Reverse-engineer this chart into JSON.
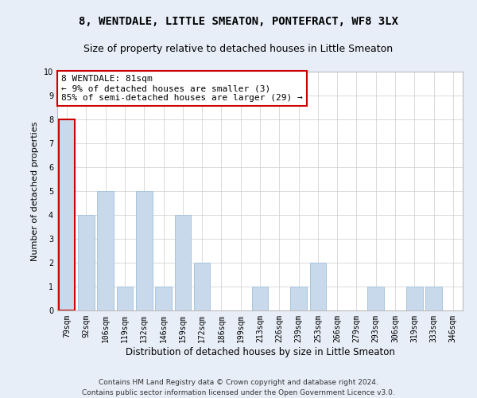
{
  "title": "8, WENTDALE, LITTLE SMEATON, PONTEFRACT, WF8 3LX",
  "subtitle": "Size of property relative to detached houses in Little Smeaton",
  "xlabel": "Distribution of detached houses by size in Little Smeaton",
  "ylabel": "Number of detached properties",
  "categories": [
    "79sqm",
    "92sqm",
    "106sqm",
    "119sqm",
    "132sqm",
    "146sqm",
    "159sqm",
    "172sqm",
    "186sqm",
    "199sqm",
    "213sqm",
    "226sqm",
    "239sqm",
    "253sqm",
    "266sqm",
    "279sqm",
    "293sqm",
    "306sqm",
    "319sqm",
    "333sqm",
    "346sqm"
  ],
  "values": [
    8,
    4,
    5,
    1,
    5,
    1,
    4,
    2,
    0,
    0,
    1,
    0,
    1,
    2,
    0,
    0,
    1,
    0,
    1,
    1,
    0
  ],
  "bar_color": "#c9d9ec",
  "bar_edge_color": "#a8c4dc",
  "highlight_bar_index": 0,
  "highlight_edge_color": "#cc0000",
  "annotation_text": "8 WENTDALE: 81sqm\n← 9% of detached houses are smaller (3)\n85% of semi-detached houses are larger (29) →",
  "annotation_box_color": "white",
  "annotation_border_color": "#cc0000",
  "ylim": [
    0,
    10
  ],
  "yticks": [
    0,
    1,
    2,
    3,
    4,
    5,
    6,
    7,
    8,
    9,
    10
  ],
  "footer_line1": "Contains HM Land Registry data © Crown copyright and database right 2024.",
  "footer_line2": "Contains public sector information licensed under the Open Government Licence v3.0.",
  "bg_color": "#e8eef8",
  "plot_bg_color": "#ffffff",
  "title_fontsize": 10,
  "subtitle_fontsize": 9,
  "xlabel_fontsize": 8.5,
  "ylabel_fontsize": 8,
  "tick_fontsize": 7,
  "annotation_fontsize": 8,
  "footer_fontsize": 6.5
}
